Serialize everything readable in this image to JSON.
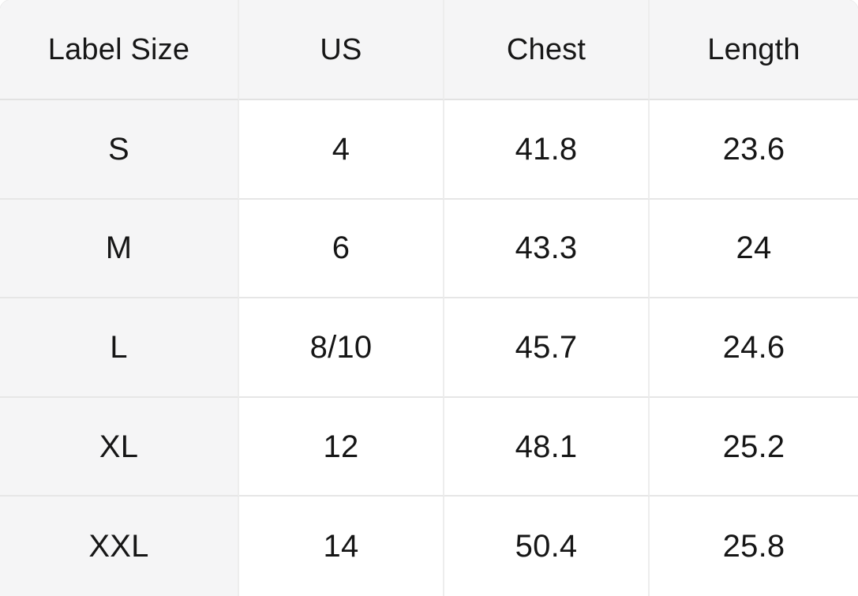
{
  "colors": {
    "header_bg": "#f5f5f6",
    "cell_bg": "#ffffff",
    "border": "#ececec",
    "border_v": "#ededed",
    "border_h": "#e6e6e6",
    "border_header": "#e2e2e2",
    "text": "#161616"
  },
  "table": {
    "columns": [
      "Label Size",
      "US",
      "Chest",
      "Length"
    ],
    "rows": [
      {
        "label_size": "S",
        "us": "4",
        "chest": "41.8",
        "length": "23.6"
      },
      {
        "label_size": "M",
        "us": "6",
        "chest": "43.3",
        "length": "24"
      },
      {
        "label_size": "L",
        "us": "8/10",
        "chest": "45.7",
        "length": "24.6"
      },
      {
        "label_size": "XL",
        "us": "12",
        "chest": "48.1",
        "length": "25.2"
      },
      {
        "label_size": "XXL",
        "us": "14",
        "chest": "50.4",
        "length": "25.8"
      }
    ]
  }
}
